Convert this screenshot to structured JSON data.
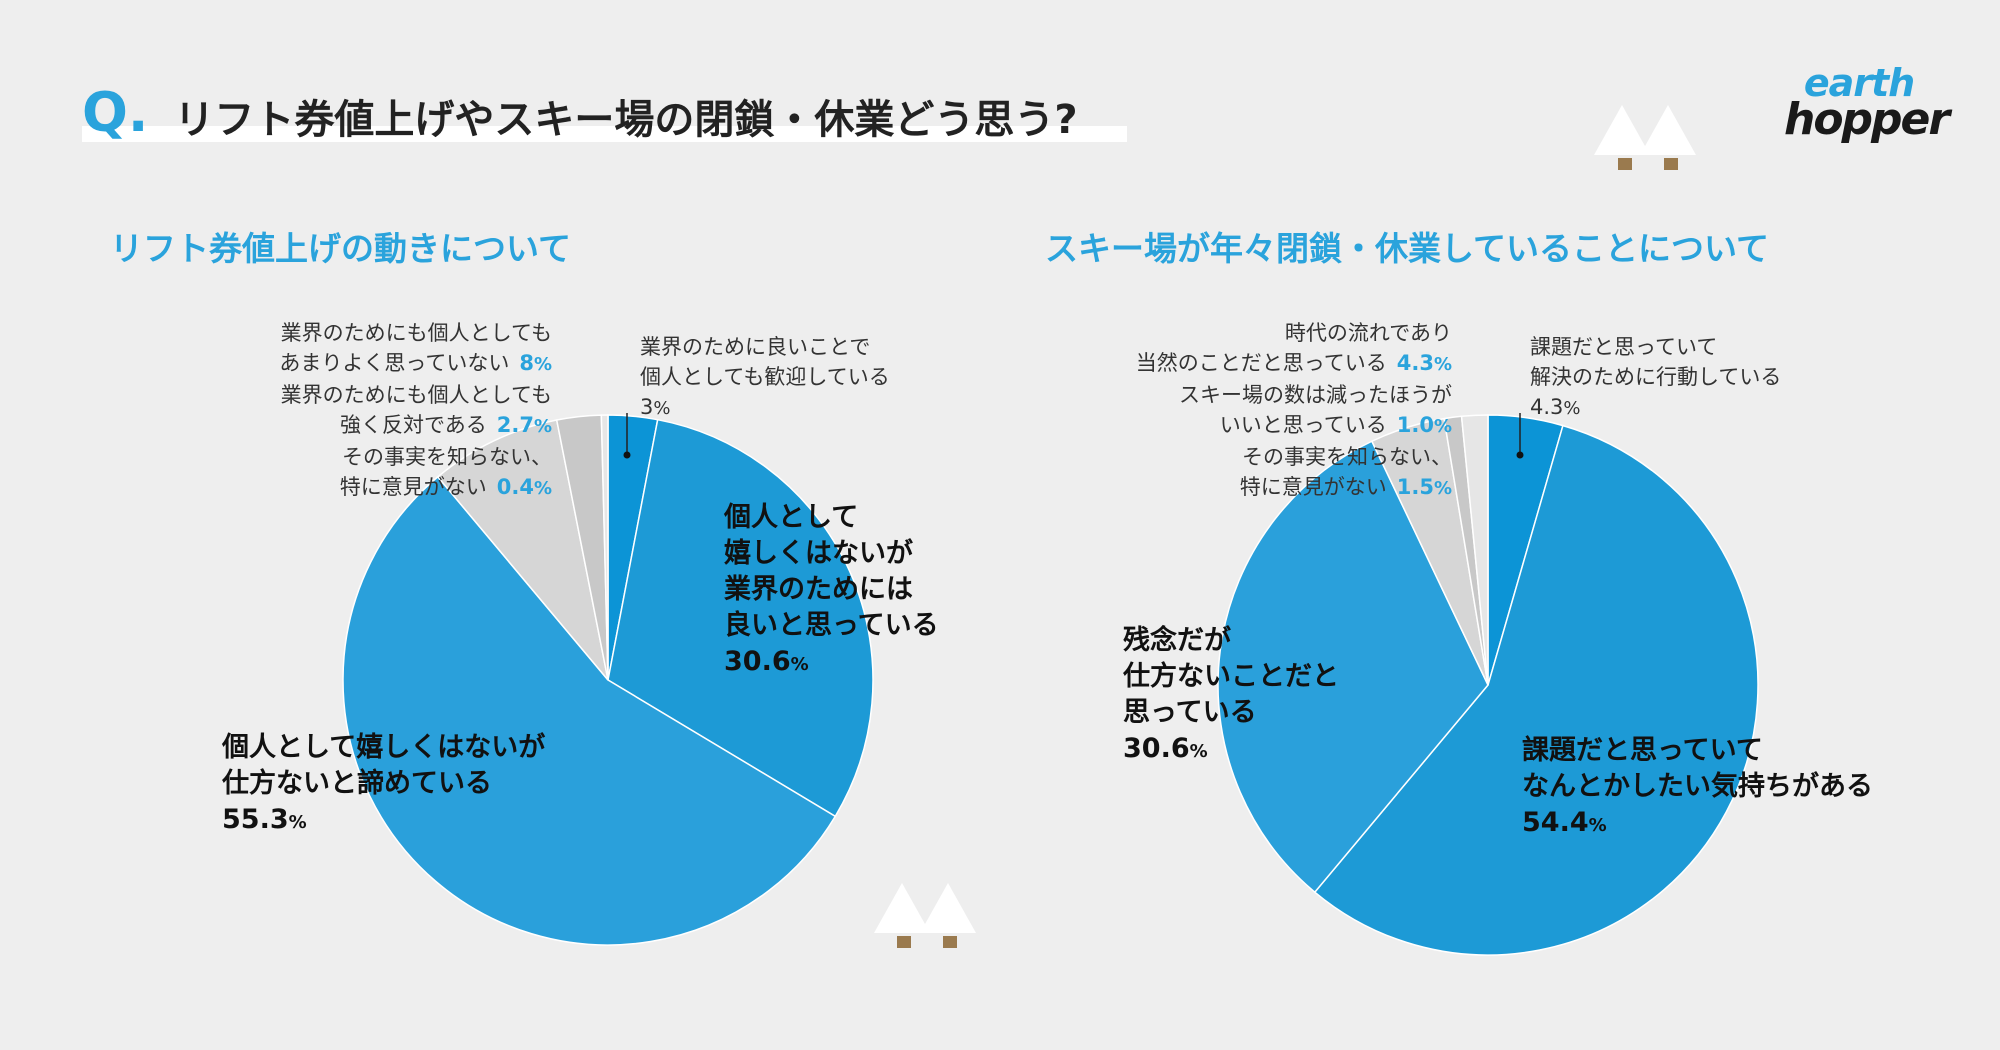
{
  "header": {
    "q_mark": "Q",
    "question": "リフト券値上げやスキー場の閉鎖・休業どう思う?"
  },
  "logo": {
    "line1": "earth",
    "line2": "hopper"
  },
  "colors": {
    "accent": "#2aa3dc",
    "dark_blue": "#0c94d6",
    "mid_blue": "#1d9ad6",
    "light_blue": "#2aa0db",
    "grey1": "#d6d6d6",
    "grey2": "#c8c8c8",
    "grey3": "#e6e6e6"
  },
  "chart_data": [
    {
      "type": "pie",
      "title": "リフト券値上げの動きについて",
      "series": [
        {
          "name": "業界のために良いことで個人としても歓迎している",
          "value": 3,
          "display": "3"
        },
        {
          "name": "個人として嬉しくはないが業界のためには良いと思っている",
          "value": 30.6,
          "display": "30.6"
        },
        {
          "name": "個人として嬉しくはないが仕方ないと諦めている",
          "value": 55.3,
          "display": "55.3"
        },
        {
          "name": "業界のためにも個人としてもあまりよく思っていない",
          "value": 8,
          "display": "8"
        },
        {
          "name": "業界のためにも個人としても強く反対である",
          "value": 2.7,
          "display": "2.7"
        },
        {
          "name": "その事実を知らない、特に意見がない",
          "value": 0.4,
          "display": "0.4"
        }
      ],
      "labels": {
        "s0": [
          "業界のために良いことで",
          "個人としても歓迎している"
        ],
        "s1": [
          "個人として",
          "嬉しくはないが",
          "業界のためには",
          "良いと思っている"
        ],
        "s2": [
          "個人として嬉しくはないが",
          "仕方ないと諦めている"
        ],
        "s3": [
          "業界のためにも個人としても",
          "あまりよく思っていない"
        ],
        "s4": [
          "業界のためにも個人としても",
          "強く反対である"
        ],
        "s5": [
          "その事実を知らない、",
          "特に意見がない"
        ]
      }
    },
    {
      "type": "pie",
      "title": "スキー場が年々閉鎖・休業していることについて",
      "series": [
        {
          "name": "課題だと思っていて解決のために行動している",
          "value": 4.3,
          "display": "4.3"
        },
        {
          "name": "課題だと思っていてなんとかしたい気持ちがある",
          "value": 54.4,
          "display": "54.4"
        },
        {
          "name": "残念だが仕方ないことだと思っている",
          "value": 30.6,
          "display": "30.6"
        },
        {
          "name": "時代の流れであり当然のことだと思っている",
          "value": 4.3,
          "display": "4.3"
        },
        {
          "name": "スキー場の数は減ったほうがいいと思っている",
          "value": 1.0,
          "display": "1.0"
        },
        {
          "name": "その事実を知らない、特に意見がない",
          "value": 1.5,
          "display": "1.5"
        }
      ],
      "labels": {
        "s0": [
          "課題だと思っていて",
          "解決のために行動している"
        ],
        "s1": [
          "課題だと思っていて",
          "なんとかしたい気持ちがある"
        ],
        "s2": [
          "残念だが",
          "仕方ないことだと",
          "思っている"
        ],
        "s3": [
          "時代の流れであり",
          "当然のことだと思っている"
        ],
        "s4": [
          "スキー場の数は減ったほうが",
          "いいと思っている"
        ],
        "s5": [
          "その事実を知らない、",
          "特に意見がない"
        ]
      }
    }
  ],
  "pct_symbol": "%"
}
